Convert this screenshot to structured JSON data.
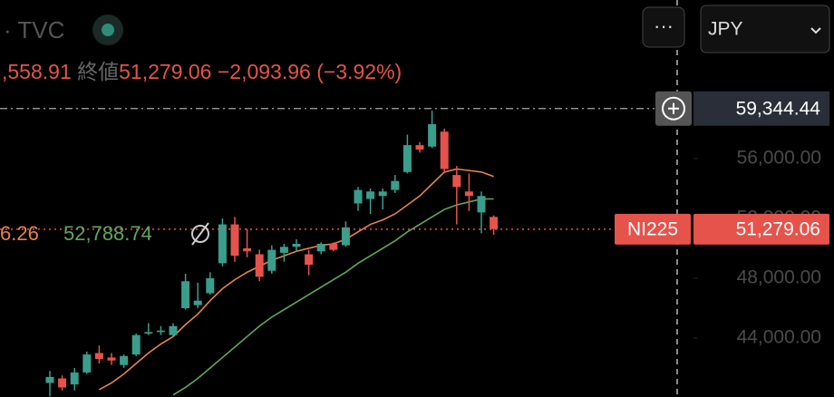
{
  "header": {
    "symbol": "TVC",
    "open_fragment": ",558.91",
    "close_label": "終値",
    "close": "51,279.06",
    "change": "−2,093.96 (−3.92%)",
    "ma_labels": [
      "6.26",
      "52,788.74"
    ],
    "currency": "JPY"
  },
  "chart_data": {
    "type": "candlestick",
    "ylim": [
      40060,
      66600
    ],
    "yticks": [
      {
        "value": 44000,
        "label": "44,000.00"
      },
      {
        "value": 48000,
        "label": "48,000.00"
      },
      {
        "value": 52000,
        "label": "52,000.00"
      },
      {
        "value": 56000,
        "label": "56,000.00"
      }
    ],
    "open": [
      41000,
      41300,
      40900,
      41700,
      43000,
      42700,
      42200,
      42900,
      44300,
      44400,
      44200,
      46000,
      46200,
      47000,
      49000,
      51600,
      50000,
      49600,
      48500,
      49700,
      50100,
      49600,
      49800,
      50300,
      50200,
      53000,
      53300,
      53500,
      53900,
      55100,
      56900,
      56800,
      57800,
      54900,
      53800,
      52400,
      52100
    ],
    "high": [
      41800,
      41500,
      42000,
      43100,
      43500,
      43000,
      42900,
      44300,
      45000,
      44800,
      45000,
      48300,
      47700,
      48400,
      52000,
      52100,
      51300,
      49900,
      50200,
      50300,
      50600,
      49900,
      50400,
      50400,
      51800,
      54100,
      54000,
      54000,
      54900,
      57600,
      57100,
      59200,
      58000,
      55500,
      55000,
      53800,
      52200
    ],
    "low": [
      40100,
      40500,
      40500,
      41600,
      42300,
      42200,
      42000,
      42800,
      44200,
      44200,
      44100,
      45900,
      46000,
      46900,
      48800,
      49100,
      49400,
      47800,
      48300,
      49100,
      49800,
      48200,
      49600,
      49800,
      50100,
      52500,
      52300,
      52600,
      53700,
      55000,
      56400,
      56700,
      55100,
      51600,
      52500,
      51000,
      50900
    ],
    "close": [
      41400,
      40700,
      41700,
      42900,
      42600,
      42500,
      42800,
      44200,
      44400,
      44500,
      44800,
      47800,
      46500,
      48000,
      51600,
      49500,
      49800,
      48100,
      49900,
      50100,
      50300,
      48900,
      50300,
      49900,
      51400,
      53900,
      53800,
      53800,
      54500,
      56900,
      56600,
      58300,
      55300,
      54100,
      53500,
      53500,
      51279.06
    ],
    "series": [
      {
        "color": "#e8824c",
        "values": [
          null,
          null,
          null,
          null,
          40550,
          41000,
          41600,
          42300,
          43000,
          43600,
          44100,
          44900,
          45600,
          46500,
          47300,
          47900,
          48400,
          48800,
          49200,
          49500,
          49800,
          50000,
          50200,
          50300,
          50600,
          51100,
          51600,
          51900,
          52300,
          52900,
          53500,
          54300,
          55100,
          55300,
          55200,
          55100,
          54800
        ]
      },
      {
        "color": "#5fa85a",
        "values": [
          null,
          null,
          null,
          null,
          null,
          null,
          null,
          null,
          null,
          null,
          40200,
          40700,
          41300,
          42000,
          42700,
          43400,
          44100,
          44800,
          45400,
          45900,
          46400,
          46900,
          47400,
          47900,
          48400,
          49000,
          49500,
          50000,
          50500,
          51100,
          51600,
          52100,
          52600,
          52900,
          53100,
          53300,
          53300
        ]
      }
    ],
    "up_color": "#3a9e8c",
    "down_color": "#e5534b",
    "crosshair": {
      "value": 59344.44,
      "label": "59,344.44"
    },
    "last": {
      "symbol": "NI225",
      "value": 51279.06,
      "label": "51,279.06"
    }
  }
}
